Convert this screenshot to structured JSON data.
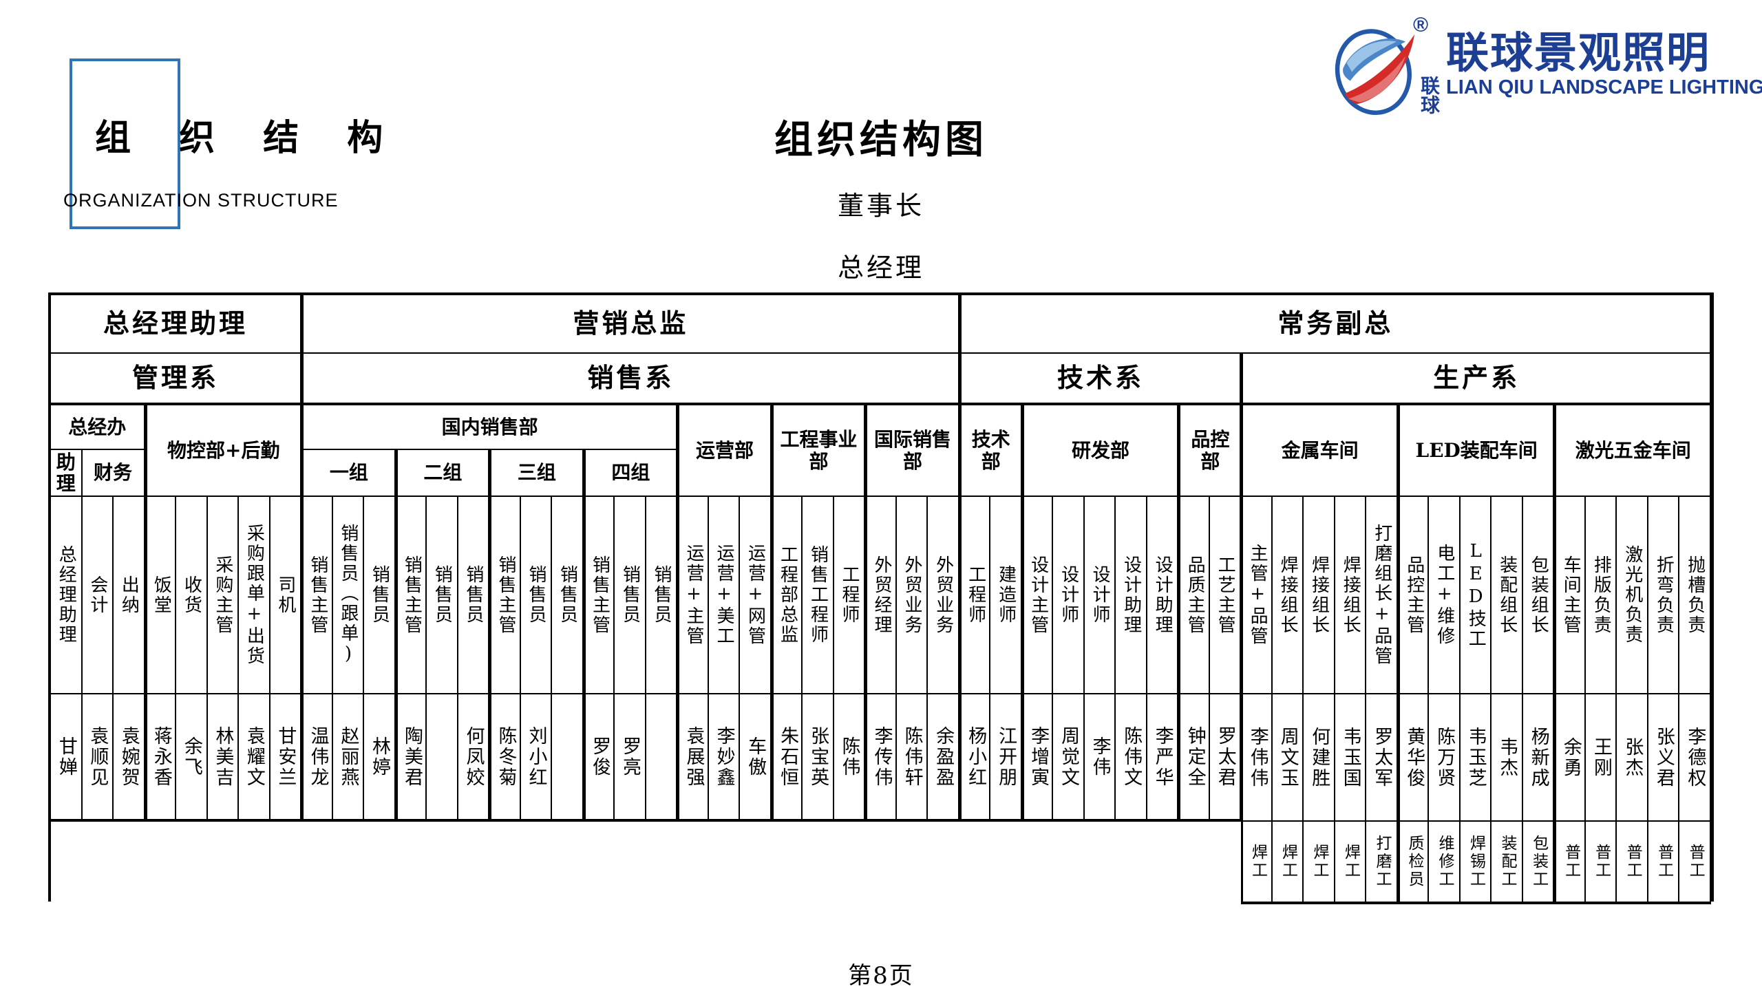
{
  "page": {
    "corner_cn": "组 织 结 构",
    "corner_en": "ORGANIZATION STRUCTURE",
    "chart_title": "组织结构图",
    "chairman": "董事长",
    "general_manager": "总经理",
    "page_number": "第8页"
  },
  "logo": {
    "brand_cn": "联球景观照明",
    "brand_en": "LIAN QIU LANDSCAPE LIGHTING",
    "seal_cn": "联球",
    "registered_mark": "®",
    "blue": "#1c3f94",
    "red": "#d42a28",
    "box_blue": "#2e75b6"
  },
  "org": {
    "heads": [
      {
        "label": "总经理助理",
        "span": 8
      },
      {
        "label": "营销总监",
        "span": 21
      },
      {
        "label": "常务副总",
        "span": 24
      }
    ],
    "systems": [
      {
        "label": "管理系",
        "span": 8
      },
      {
        "label": "销售系",
        "span": 21
      },
      {
        "label": "技术系",
        "span": 9
      },
      {
        "label": "生产系",
        "span": 15
      }
    ],
    "departments": [
      {
        "label": "总经办",
        "span": 3,
        "subs": [
          {
            "label": "助理",
            "span": 1
          },
          {
            "label": "财务",
            "span": 2
          }
        ]
      },
      {
        "label": "物控部+后勤",
        "span": 5
      },
      {
        "label": "国内销售部",
        "span": 12,
        "subs": [
          {
            "label": "一组",
            "span": 3
          },
          {
            "label": "二组",
            "span": 3
          },
          {
            "label": "三组",
            "span": 3
          },
          {
            "label": "四组",
            "span": 3
          }
        ]
      },
      {
        "label": "运营部",
        "span": 3
      },
      {
        "label": "工程事业部",
        "span": 3
      },
      {
        "label": "国际销售部",
        "span": 3
      },
      {
        "label": "技术部",
        "span": 2
      },
      {
        "label": "研发部",
        "span": 5
      },
      {
        "label": "品控部",
        "span": 2
      },
      {
        "label": "金属车间",
        "span": 5
      },
      {
        "label": "LED装配车间",
        "span": 5
      },
      {
        "label": "激光五金车间",
        "span": 5
      }
    ],
    "columns": [
      {
        "role": "总经理助理",
        "person": "甘婵"
      },
      {
        "role": "会计",
        "person": "袁顺见"
      },
      {
        "role": "出纳",
        "person": "袁婉贺"
      },
      {
        "role": "饭堂",
        "person": "蒋永香"
      },
      {
        "role": "收货",
        "person": "余飞"
      },
      {
        "role": "采购主管",
        "person": "林美吉"
      },
      {
        "role": "采购跟单+出货",
        "person": "袁耀文"
      },
      {
        "role": "司机",
        "person": "甘安兰"
      },
      {
        "role": "销售主管",
        "person": "温伟龙"
      },
      {
        "role": "销售员（跟单)",
        "person": "赵丽燕"
      },
      {
        "role": "销售员",
        "person": "林婷"
      },
      {
        "role": "销售主管",
        "person": "陶美君"
      },
      {
        "role": "销售员",
        "person": ""
      },
      {
        "role": "销售员",
        "person": "何凤姣"
      },
      {
        "role": "销售主管",
        "person": "陈冬菊"
      },
      {
        "role": "销售员",
        "person": "刘小红"
      },
      {
        "role": "销售员",
        "person": ""
      },
      {
        "role": "销售主管",
        "person": "罗俊"
      },
      {
        "role": "销售员",
        "person": "罗亮"
      },
      {
        "role": "销售员",
        "person": ""
      },
      {
        "role": "运营+主管",
        "person": "袁展强"
      },
      {
        "role": "运营+美工",
        "person": "李妙鑫"
      },
      {
        "role": "运营+网管",
        "person": "车傲"
      },
      {
        "role": "工程部总监",
        "person": "朱石恒"
      },
      {
        "role": "销售工程师",
        "person": "张宝英"
      },
      {
        "role": "工程师",
        "person": "陈伟"
      },
      {
        "role": "外贸经理",
        "person": "李传伟"
      },
      {
        "role": "外贸业务",
        "person": "陈伟轩"
      },
      {
        "role": "外贸业务",
        "person": "余盈盈"
      },
      {
        "role": "工程师",
        "person": "杨小红"
      },
      {
        "role": "建造师",
        "person": "江开朋"
      },
      {
        "role": "设计主管",
        "person": "李增寅"
      },
      {
        "role": "设计师",
        "person": "周觉文"
      },
      {
        "role": "设计师",
        "person": "李伟"
      },
      {
        "role": "设计助理",
        "person": "陈伟文"
      },
      {
        "role": "设计助理",
        "person": "李严华"
      },
      {
        "role": "品质主管",
        "person": "钟定全"
      },
      {
        "role": "工艺主管",
        "person": "罗太君"
      },
      {
        "role": "主管+品管",
        "person": "李伟伟",
        "worker": "焊工"
      },
      {
        "role": "焊接组长",
        "person": "周文玉",
        "worker": "焊工"
      },
      {
        "role": "焊接组长",
        "person": "何建胜",
        "worker": "焊工"
      },
      {
        "role": "焊接组长",
        "person": "韦玉国",
        "worker": "焊工"
      },
      {
        "role": "打磨组长+品管",
        "person": "罗太军",
        "worker": "打磨工"
      },
      {
        "role": "品控主管",
        "person": "黄华俊",
        "worker": "质检员"
      },
      {
        "role": "电工+维修",
        "person": "陈万贤",
        "worker": "维修工"
      },
      {
        "role": "LED技工",
        "person": "韦玉芝",
        "worker": "焊锡工"
      },
      {
        "role": "装配组长",
        "person": "韦杰",
        "worker": "装配工"
      },
      {
        "role": "包装组长",
        "person": "杨新成",
        "worker": "包装工"
      },
      {
        "role": "车间主管",
        "person": "余勇",
        "worker": "普工"
      },
      {
        "role": "排版负责",
        "person": "王刚",
        "worker": "普工"
      },
      {
        "role": "激光机负责",
        "person": "张杰",
        "worker": "普工"
      },
      {
        "role": "折弯负责",
        "person": "张义君",
        "worker": "普工"
      },
      {
        "role": "抛槽负责",
        "person": "李德权",
        "worker": "普工"
      }
    ]
  }
}
